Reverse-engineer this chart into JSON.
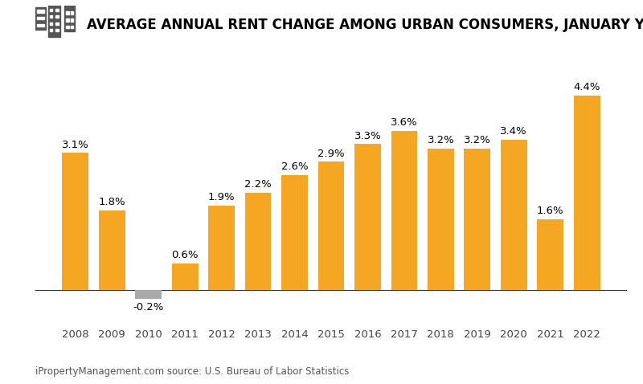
{
  "title": "AVERAGE ANNUAL RENT CHANGE AMONG URBAN CONSUMERS, JANUARY YEAR-OVER-YEAR",
  "categories": [
    "2008",
    "2009",
    "2010",
    "2011",
    "2012",
    "2013",
    "2014",
    "2015",
    "2016",
    "2017",
    "2018",
    "2019",
    "2020",
    "2021",
    "2022"
  ],
  "values": [
    3.1,
    1.8,
    -0.2,
    0.6,
    1.9,
    2.2,
    2.6,
    2.9,
    3.3,
    3.6,
    3.2,
    3.2,
    3.4,
    1.6,
    4.4
  ],
  "bar_color_positive": "#F5A623",
  "bar_color_negative": "#AAAAAA",
  "background_color": "#FFFFFF",
  "caption": "iPropertyManagement.com source: U.S. Bureau of Labor Statistics",
  "ylim_min": -0.7,
  "ylim_max": 5.0,
  "title_fontsize": 12,
  "label_fontsize": 9.5,
  "caption_fontsize": 8.5,
  "tick_fontsize": 9.5
}
